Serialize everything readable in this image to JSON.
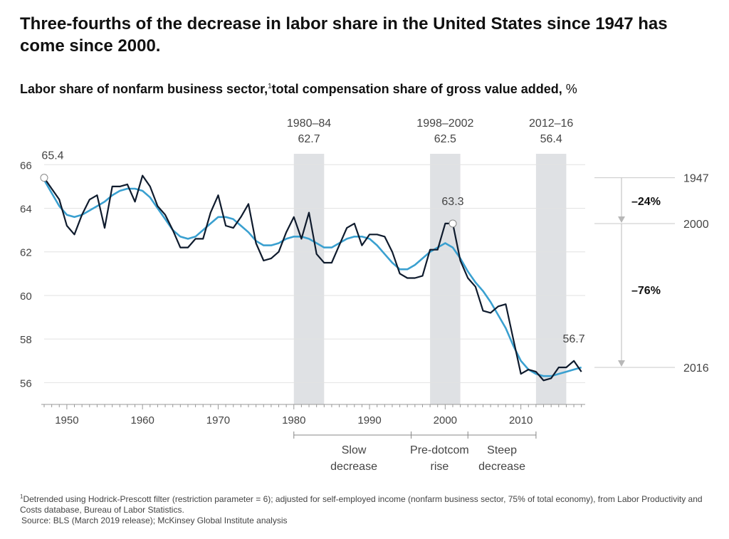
{
  "header": {
    "title": "Three-fourths of the decrease in labor share in the United States since 1947 has come since 2000.",
    "subtitle_bold": "Labor share of nonfarm business sector,",
    "subtitle_sup": "1",
    "subtitle_bold2": "total compensation share of gross value added,",
    "subtitle_unit": " %"
  },
  "footnote": {
    "sup": "1",
    "line1": "Detrended using Hodrick-Prescott filter (restriction parameter = 6); adjusted for self-employed income (nonfarm business sector, 75% of total economy), from Labor Productivity and Costs database, Bureau of Labor Statistics.",
    "line2": "Source: BLS (March 2019 release); McKinsey Global Institute analysis"
  },
  "chart_data": {
    "type": "line",
    "ylim": [
      55,
      66.5
    ],
    "xlim": [
      1947,
      2018.5
    ],
    "yticks": [
      56,
      58,
      60,
      62,
      64,
      66
    ],
    "xticks": [
      1950,
      1960,
      1970,
      1980,
      1990,
      2000,
      2010
    ],
    "grid": true,
    "colors": {
      "series": "#0f1b2d",
      "trend": "#3aa0d0",
      "shade": "#dfe1e4",
      "grid": "#e2e2e2",
      "axis": "#666666",
      "text": "#444444"
    },
    "series": [
      {
        "role": "series",
        "x": [
          1947,
          1948,
          1949,
          1950,
          1951,
          1952,
          1953,
          1954,
          1955,
          1956,
          1957,
          1958,
          1959,
          1960,
          1961,
          1962,
          1963,
          1964,
          1965,
          1966,
          1967,
          1968,
          1969,
          1970,
          1971,
          1972,
          1973,
          1974,
          1975,
          1976,
          1977,
          1978,
          1979,
          1980,
          1981,
          1982,
          1983,
          1984,
          1985,
          1986,
          1987,
          1988,
          1989,
          1990,
          1991,
          1992,
          1993,
          1994,
          1995,
          1996,
          1997,
          1998,
          1999,
          2000,
          2001,
          2002,
          2003,
          2004,
          2005,
          2006,
          2007,
          2008,
          2009,
          2010,
          2011,
          2012,
          2013,
          2014,
          2015,
          2016,
          2017,
          2018
        ],
        "values": [
          65.4,
          64.9,
          64.4,
          63.2,
          62.8,
          63.7,
          64.4,
          64.6,
          63.1,
          65.0,
          65.0,
          65.1,
          64.3,
          65.5,
          65.0,
          64.1,
          63.7,
          63.0,
          62.2,
          62.2,
          62.6,
          62.6,
          63.8,
          64.6,
          63.2,
          63.1,
          63.6,
          64.2,
          62.4,
          61.6,
          61.7,
          62.0,
          62.9,
          63.6,
          62.6,
          63.8,
          61.9,
          61.5,
          61.5,
          62.3,
          63.1,
          63.3,
          62.3,
          62.8,
          62.8,
          62.7,
          62.0,
          61.0,
          60.8,
          60.8,
          60.9,
          62.1,
          62.1,
          63.3,
          63.3,
          61.6,
          60.8,
          60.4,
          59.3,
          59.2,
          59.5,
          59.6,
          58.0,
          56.4,
          56.6,
          56.5,
          56.1,
          56.2,
          56.7,
          56.7,
          57.0,
          56.5
        ]
      },
      {
        "role": "trend",
        "x": [
          1947,
          1948,
          1949,
          1950,
          1951,
          1952,
          1953,
          1954,
          1955,
          1956,
          1957,
          1958,
          1959,
          1960,
          1961,
          1962,
          1963,
          1964,
          1965,
          1966,
          1967,
          1968,
          1969,
          1970,
          1971,
          1972,
          1973,
          1974,
          1975,
          1976,
          1977,
          1978,
          1979,
          1980,
          1981,
          1982,
          1983,
          1984,
          1985,
          1986,
          1987,
          1988,
          1989,
          1990,
          1991,
          1992,
          1993,
          1994,
          1995,
          1996,
          1997,
          1998,
          1999,
          2000,
          2001,
          2002,
          2003,
          2004,
          2005,
          2006,
          2007,
          2008,
          2009,
          2010,
          2011,
          2012,
          2013,
          2014,
          2015,
          2016,
          2017,
          2018
        ],
        "values": [
          65.3,
          64.7,
          64.1,
          63.7,
          63.6,
          63.7,
          63.9,
          64.1,
          64.3,
          64.6,
          64.8,
          64.9,
          64.9,
          64.8,
          64.5,
          64.0,
          63.5,
          63.0,
          62.7,
          62.6,
          62.7,
          63.0,
          63.3,
          63.6,
          63.6,
          63.5,
          63.2,
          62.9,
          62.5,
          62.3,
          62.3,
          62.4,
          62.6,
          62.7,
          62.7,
          62.6,
          62.4,
          62.2,
          62.2,
          62.4,
          62.6,
          62.7,
          62.7,
          62.6,
          62.3,
          61.9,
          61.5,
          61.2,
          61.2,
          61.4,
          61.7,
          62.0,
          62.2,
          62.4,
          62.2,
          61.7,
          61.1,
          60.6,
          60.2,
          59.7,
          59.1,
          58.5,
          57.7,
          57.0,
          56.6,
          56.4,
          56.3,
          56.3,
          56.4,
          56.5,
          56.6,
          56.7
        ]
      }
    ],
    "shaded_periods": [
      {
        "start": 1980,
        "end": 1984,
        "label_years": "1980–84",
        "label_value": "62.7"
      },
      {
        "start": 1998,
        "end": 2002,
        "label_years": "1998–2002",
        "label_value": "62.5"
      },
      {
        "start": 2012,
        "end": 2016,
        "label_years": "2012–16",
        "label_value": "56.4"
      }
    ],
    "point_labels": [
      {
        "x": 1947,
        "y": 65.4,
        "text": "65.4",
        "circle": true
      },
      {
        "x": 2001,
        "y": 63.3,
        "text": "63.3",
        "circle": true
      },
      {
        "x": 2017,
        "y": 57.0,
        "text": "56.7",
        "circle": false
      }
    ],
    "phases": [
      {
        "from": 1980,
        "to": 1995.5,
        "line1": "Slow",
        "line2": "decrease"
      },
      {
        "from": 1995.5,
        "to": 2003,
        "line1": "Pre-dotcom",
        "line2": "rise"
      },
      {
        "from": 2003,
        "to": 2012,
        "line1": "Steep",
        "line2": "decrease"
      }
    ],
    "reference": {
      "levels": [
        {
          "y": 65.4,
          "label": "1947"
        },
        {
          "y": 63.3,
          "label": "2000"
        },
        {
          "y": 56.7,
          "label": "2016"
        }
      ],
      "changes": [
        {
          "from": 65.4,
          "to": 63.3,
          "label": "–24%"
        },
        {
          "from": 63.3,
          "to": 56.7,
          "label": "–76%"
        }
      ]
    }
  }
}
